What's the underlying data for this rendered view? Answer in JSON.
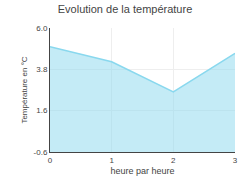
{
  "chart_data": {
    "type": "area",
    "title": "Evolution de la température",
    "xlabel": "heure par heure",
    "ylabel": "Température en °C",
    "x": [
      0,
      1,
      2,
      3
    ],
    "values": [
      5.0,
      4.2,
      2.6,
      4.65
    ],
    "color": "#89d8ee",
    "xlim": [
      0,
      3
    ],
    "ylim": [
      -0.6,
      6.0
    ],
    "xticks": [
      0,
      1,
      2,
      3
    ],
    "yticks": [
      -0.6,
      1.6,
      3.8,
      {
        "value": 6.0,
        "label": "6.0"
      }
    ],
    "grid": true
  }
}
